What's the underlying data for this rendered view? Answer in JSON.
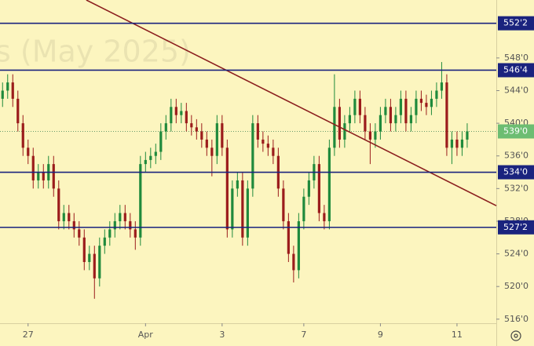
{
  "chart_data": {
    "type": "candlestick",
    "watermark": "s (May 2025)",
    "xlim": [
      -0.5,
      96.7
    ],
    "ylim": [
      515.5,
      555.1
    ],
    "xticks": [
      {
        "value": 5,
        "label": "27"
      },
      {
        "value": 28,
        "label": "Apr"
      },
      {
        "value": 43,
        "label": "3"
      },
      {
        "value": 59,
        "label": "7"
      },
      {
        "value": 74,
        "label": "9"
      },
      {
        "value": 89,
        "label": "11"
      }
    ],
    "yticks": [
      {
        "value": 516,
        "label": "516'0"
      },
      {
        "value": 520,
        "label": "520'0"
      },
      {
        "value": 524,
        "label": "524'0"
      },
      {
        "value": 528,
        "label": "528'0"
      },
      {
        "value": 532,
        "label": "532'0"
      },
      {
        "value": 536,
        "label": "536'0"
      },
      {
        "value": 540,
        "label": "540'0"
      },
      {
        "value": 544,
        "label": "544'0"
      },
      {
        "value": 548,
        "label": "548'0"
      }
    ],
    "up_color": "#1f8a3c",
    "down_color": "#9b1c1c",
    "open": [
      543,
      544,
      545,
      543,
      540,
      537,
      536,
      533,
      534,
      533,
      535,
      532,
      528,
      529,
      528,
      527,
      526,
      523,
      524,
      521,
      525,
      526,
      527,
      528,
      529,
      528,
      527,
      526,
      535,
      535.5,
      536,
      536.5,
      539,
      540,
      542,
      541,
      541.5,
      540,
      539.5,
      539,
      538,
      537,
      536,
      540,
      537,
      527,
      532,
      533,
      526,
      532,
      540,
      538,
      537.5,
      537,
      536,
      532,
      528,
      524,
      522,
      528,
      531,
      533,
      535,
      529,
      528,
      537,
      542,
      538,
      540,
      541,
      543,
      541,
      539,
      538,
      539,
      541,
      542,
      540,
      541,
      543,
      540,
      541,
      543,
      542.5,
      542,
      543,
      544,
      545,
      537,
      538,
      537,
      538
    ],
    "high": [
      545,
      546,
      546,
      544,
      541,
      538,
      537,
      535,
      535,
      536,
      536,
      533,
      530,
      530,
      529,
      528,
      527,
      525,
      525,
      526,
      527,
      528,
      529,
      530,
      530,
      529,
      528,
      536,
      536.5,
      537,
      537.5,
      540,
      541,
      543,
      543,
      542.5,
      542.5,
      541,
      540.5,
      540,
      539,
      538,
      541,
      541,
      538,
      533,
      534,
      534,
      533,
      541,
      541,
      539,
      538.5,
      538,
      537,
      533,
      529,
      525,
      529,
      532,
      534,
      536,
      536,
      530,
      538,
      546,
      543,
      541,
      542,
      544,
      544,
      542,
      540,
      540,
      542,
      543,
      543,
      542,
      544,
      544,
      542,
      544,
      544,
      543.5,
      544,
      545,
      547.5,
      546,
      539,
      539,
      539,
      540
    ],
    "low": [
      542,
      543,
      542,
      539,
      536,
      535,
      532,
      532,
      532,
      532,
      531,
      527,
      527,
      527,
      526,
      525,
      522,
      522,
      518.5,
      520,
      524,
      525,
      526,
      527,
      527,
      526,
      524.5,
      525,
      534,
      534.5,
      535,
      535.5,
      538,
      539,
      540,
      540,
      539,
      538.5,
      538,
      537,
      536,
      533.5,
      535,
      536,
      526,
      526,
      531,
      525,
      525,
      531,
      537,
      536.5,
      536,
      535,
      531,
      527,
      523,
      520.5,
      521,
      527,
      530,
      532,
      528,
      527,
      527,
      536,
      537,
      537,
      539,
      540,
      540,
      538,
      535,
      537,
      538,
      540,
      539,
      539,
      540,
      539,
      539,
      540,
      541.5,
      541,
      541,
      542,
      543,
      536,
      535,
      536,
      536,
      537
    ],
    "close": [
      544,
      545,
      543,
      540,
      537,
      536,
      533,
      534,
      533,
      535,
      532,
      528,
      529,
      528,
      527,
      526,
      523,
      524,
      521,
      525,
      526,
      527,
      528,
      529,
      528,
      527,
      526,
      535,
      535.5,
      536,
      536.5,
      539,
      540,
      542,
      541,
      541.5,
      540,
      539.5,
      539,
      538,
      537,
      536,
      540,
      537,
      527,
      532,
      533,
      526,
      532,
      540,
      538,
      537.5,
      537,
      536,
      532,
      528,
      524,
      522,
      528,
      531,
      533,
      535,
      529,
      528,
      537,
      542,
      538,
      540,
      541,
      543,
      541,
      539,
      538,
      539,
      541,
      542,
      540,
      541,
      543,
      540,
      541,
      543,
      542.5,
      542,
      543,
      544,
      545,
      537,
      538,
      537,
      538,
      539
    ],
    "levels": [
      {
        "value": 552.25,
        "label": "552'2"
      },
      {
        "value": 546.5,
        "label": "546'4"
      },
      {
        "value": 534,
        "label": "534'0"
      },
      {
        "value": 527.25,
        "label": "527'2"
      }
    ],
    "level_color": "#1a237e",
    "last_price": {
      "value": 539,
      "label": "539'0"
    },
    "last_price_color": "#6dbd72",
    "trend_line": {
      "x": [
        16.4,
        96.7
      ],
      "y": [
        555.1,
        529.9
      ],
      "color": "#8b1e1e"
    }
  }
}
